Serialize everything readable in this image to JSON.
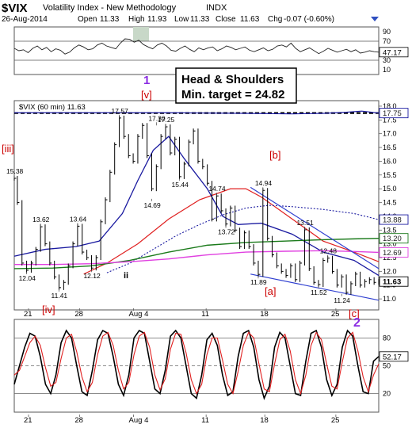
{
  "header": {
    "symbol": "$VIX",
    "name": "Volatility Index - New Methodology",
    "exchange": "INDX",
    "date": "26-Aug-2014",
    "open_label": "Open",
    "open": "11.33",
    "high_label": "High",
    "high": "11.93",
    "low_label": "Low",
    "low": "11.33",
    "close_label": "Close",
    "close": "11.63",
    "chg_label": "Chg",
    "chg": "-0.07 (-0.60%)"
  },
  "colors": {
    "price": "#000000",
    "red_ma": "#e02020",
    "blue_ma": "#1a1aa0",
    "dotted_ma": "#1a1aa0",
    "green_ma": "#1a7a1a",
    "magenta_ma": "#e040e0",
    "channel": "#2f3fd0",
    "wave_red": "#cc0000",
    "wave_purple": "#8a2be2"
  },
  "chart_data": [
    {
      "type": "line",
      "title": "RSI",
      "ylim": [
        0,
        100
      ],
      "yticks": [
        "90",
        "70",
        "50",
        "30",
        "10"
      ],
      "last_value_label": "47.17",
      "values": [
        55,
        50,
        52,
        46,
        55,
        60,
        52,
        57,
        48,
        54,
        51,
        43,
        47,
        56,
        62,
        58,
        52,
        54,
        62,
        66,
        60,
        57,
        54,
        66,
        75,
        74,
        68,
        72,
        63,
        58,
        54,
        62,
        66,
        60,
        51,
        49,
        55,
        60,
        53,
        48,
        56,
        52,
        56,
        58,
        50,
        54,
        60,
        57,
        52,
        55,
        58,
        51,
        48,
        52,
        56,
        50,
        53,
        60,
        62,
        58,
        66,
        55,
        48,
        52,
        56,
        50,
        44,
        49,
        55,
        51,
        47,
        50,
        53,
        48,
        52,
        45,
        47,
        50,
        48,
        47
      ]
    },
    {
      "type": "line",
      "title": "$VIX (60 min) 11.63",
      "ylim": [
        10.6,
        18.2
      ],
      "yticks": [
        "18.0",
        "17.5",
        "17.0",
        "16.5",
        "16.0",
        "15.5",
        "15.0",
        "14.5",
        "14.0",
        "13.5",
        "13.0",
        "12.5",
        "12.0",
        "11.5",
        "11.0"
      ],
      "x_tick_labels": [
        "21",
        "28",
        "Aug 4",
        "11",
        "18",
        "25"
      ],
      "series": [
        {
          "name": "price",
          "x": [
            0,
            2,
            5,
            8,
            11,
            14,
            17,
            20,
            23,
            26,
            29,
            32,
            35,
            38,
            41,
            44,
            47,
            50,
            53,
            56,
            59,
            62,
            65,
            68,
            71,
            74,
            77,
            80,
            83,
            86,
            89,
            92,
            95,
            98,
            101,
            104,
            107,
            110,
            113,
            116,
            119,
            122,
            125,
            128,
            131,
            134,
            137,
            140,
            143,
            146,
            149,
            152,
            155,
            158,
            161,
            164,
            167,
            170,
            173,
            176,
            179,
            182,
            185,
            188,
            191,
            194,
            197,
            200,
            203,
            206,
            209,
            212,
            215,
            218,
            221,
            224,
            227,
            230,
            233,
            236
          ],
          "y": [
            15.38,
            14.5,
            12.3,
            12.04,
            12.3,
            12.8,
            13.62,
            13.0,
            12.3,
            11.8,
            11.41,
            11.6,
            12.2,
            13.0,
            13.64,
            12.7,
            12.5,
            12.12,
            12.5,
            13.8,
            14.6,
            15.6,
            16.6,
            17.57,
            16.9,
            16.2,
            16.0,
            16.9,
            17.3,
            16.2,
            15.0,
            15.8,
            16.9,
            17.25,
            16.3,
            16.8,
            15.44,
            15.9,
            16.7,
            17.1,
            16.0,
            15.8,
            15.2,
            13.9,
            14.74,
            14.2,
            13.72,
            14.3,
            13.5,
            12.9,
            13.4,
            12.9,
            12.3,
            11.89,
            14.94,
            13.2,
            12.6,
            12.2,
            12.0,
            11.85,
            12.2,
            11.7,
            12.3,
            13.51,
            12.1,
            11.6,
            11.52,
            12.4,
            12.48,
            12.0,
            11.5,
            11.8,
            11.24,
            11.55,
            11.9,
            11.5,
            11.63,
            11.7,
            11.6,
            11.63
          ]
        },
        {
          "name": "red_ma",
          "x": [
            45,
            60,
            80,
            100,
            120,
            140,
            150,
            160,
            180,
            200,
            220,
            236
          ],
          "y": [
            11.9,
            12.3,
            13.0,
            13.9,
            14.6,
            15.0,
            15.0,
            14.7,
            13.9,
            13.1,
            12.7,
            12.35
          ]
        },
        {
          "name": "blue_ma",
          "x": [
            0,
            20,
            40,
            55,
            70,
            80,
            90,
            100,
            110,
            125,
            135,
            145,
            160,
            180,
            200,
            220,
            236
          ],
          "y": [
            12.55,
            12.8,
            12.9,
            13.1,
            14.1,
            15.3,
            16.4,
            16.9,
            16.1,
            15.0,
            14.0,
            13.7,
            13.75,
            13.35,
            12.7,
            12.4,
            11.85
          ]
        },
        {
          "name": "dotted_ma",
          "x": [
            60,
            75,
            90,
            105,
            120,
            135,
            150,
            165,
            180,
            200,
            220,
            236
          ],
          "y": [
            11.95,
            12.3,
            12.8,
            13.3,
            13.7,
            14.05,
            14.3,
            14.4,
            14.35,
            14.25,
            14.1,
            13.88
          ]
        },
        {
          "name": "green_ma",
          "x": [
            0,
            25,
            50,
            75,
            100,
            125,
            150,
            175,
            200,
            220,
            236
          ],
          "y": [
            12.1,
            12.12,
            12.2,
            12.4,
            12.7,
            12.95,
            13.05,
            13.1,
            13.15,
            13.18,
            13.2
          ]
        },
        {
          "name": "magenta_ma",
          "x": [
            0,
            25,
            50,
            75,
            100,
            125,
            150,
            175,
            200,
            220,
            236
          ],
          "y": [
            12.25,
            12.25,
            12.28,
            12.35,
            12.45,
            12.6,
            12.7,
            12.73,
            12.75,
            12.72,
            12.69
          ]
        },
        {
          "name": "long_ma",
          "x": [
            0,
            50,
            100,
            150,
            180,
            200,
            215,
            225,
            236
          ],
          "y": [
            17.76,
            17.76,
            17.76,
            17.74,
            17.72,
            17.74,
            17.78,
            17.82,
            17.75
          ]
        }
      ],
      "price_labels": [
        {
          "text": "15.38",
          "x": 0,
          "y": 15.38,
          "pos": "above"
        },
        {
          "text": "12.04",
          "x": 8,
          "y": 12.04,
          "pos": "below"
        },
        {
          "text": "13.62",
          "x": 17,
          "y": 13.62,
          "pos": "above"
        },
        {
          "text": "11.41",
          "x": 29,
          "y": 11.41,
          "pos": "below"
        },
        {
          "text": "13.64",
          "x": 41,
          "y": 13.64,
          "pos": "above"
        },
        {
          "text": "12.12",
          "x": 50,
          "y": 12.12,
          "pos": "below"
        },
        {
          "text": "17.57",
          "x": 68,
          "y": 17.57,
          "pos": "above"
        },
        {
          "text": "14.69",
          "x": 89,
          "y": 14.69,
          "pos": "below"
        },
        {
          "text": "17.30",
          "x": 92,
          "y": 17.3,
          "pos": "above"
        },
        {
          "text": "17.25",
          "x": 98,
          "y": 17.25,
          "pos": "above"
        },
        {
          "text": "15.44",
          "x": 107,
          "y": 15.44,
          "pos": "below"
        },
        {
          "text": "14.74",
          "x": 131,
          "y": 14.74,
          "pos": "above"
        },
        {
          "text": "13.72",
          "x": 137,
          "y": 13.72,
          "pos": "below"
        },
        {
          "text": "14.94",
          "x": 161,
          "y": 14.94,
          "pos": "above"
        },
        {
          "text": "11.89",
          "x": 158,
          "y": 11.89,
          "pos": "below"
        },
        {
          "text": "13.51",
          "x": 188,
          "y": 13.51,
          "pos": "above"
        },
        {
          "text": "12.48",
          "x": 203,
          "y": 12.48,
          "pos": "above"
        },
        {
          "text": "11.52",
          "x": 197,
          "y": 11.52,
          "pos": "below"
        },
        {
          "text": "11.24",
          "x": 212,
          "y": 11.24,
          "pos": "below"
        }
      ],
      "axis_value_labels": [
        {
          "text": "17.75",
          "y": 17.75,
          "color": "#1a1aa0"
        },
        {
          "text": "13.88",
          "y": 13.88,
          "color": "#1a1aa0"
        },
        {
          "text": "13.20",
          "y": 13.2,
          "color": "#1a7a1a"
        },
        {
          "text": "12.69",
          "y": 12.69,
          "color": "#e040e0"
        },
        {
          "text": "11.63",
          "y": 11.63,
          "color": "#000000"
        }
      ],
      "channel_upper": {
        "x": [
          153,
          236
        ],
        "y": [
          15.05,
          12.1
        ]
      },
      "channel_lower": {
        "x": [
          153,
          236
        ],
        "y": [
          11.9,
          10.95
        ]
      },
      "neckline": 17.75
    },
    {
      "type": "line",
      "title": "Stochastic",
      "ylim": [
        0,
        100
      ],
      "yticks": [
        "80",
        "50",
        "20"
      ],
      "last_value_label": "52.17",
      "series": [
        {
          "name": "fast",
          "values": [
            30,
            50,
            70,
            85,
            82,
            60,
            30,
            20,
            40,
            75,
            88,
            80,
            50,
            22,
            18,
            45,
            78,
            88,
            85,
            60,
            30,
            18,
            40,
            80,
            88,
            85,
            55,
            25,
            20,
            45,
            82,
            88,
            80,
            50,
            20,
            15,
            40,
            78,
            85,
            72,
            40,
            18,
            22,
            60,
            85,
            88,
            70,
            35,
            15,
            28,
            70,
            86,
            80,
            50,
            20,
            18,
            55,
            85,
            88,
            70,
            35,
            18,
            30,
            70,
            88,
            82,
            50,
            22,
            20,
            55,
            60
          ]
        },
        {
          "name": "slow",
          "values": [
            40,
            45,
            60,
            75,
            82,
            72,
            48,
            28,
            32,
            58,
            80,
            84,
            65,
            38,
            22,
            32,
            62,
            82,
            86,
            72,
            45,
            25,
            32,
            62,
            82,
            86,
            70,
            40,
            24,
            36,
            68,
            85,
            84,
            64,
            35,
            20,
            30,
            62,
            80,
            80,
            56,
            30,
            20,
            44,
            72,
            86,
            80,
            52,
            25,
            22,
            52,
            78,
            84,
            66,
            35,
            20,
            40,
            72,
            86,
            78,
            52,
            28,
            25,
            54,
            80,
            86,
            66,
            38,
            22,
            40,
            52
          ]
        }
      ]
    }
  ],
  "annotations": {
    "head_shoulders_line1": "Head & Shoulders",
    "head_shoulders_line2": "Min. target = 24.82",
    "wave_1": "1",
    "wave_v": "[v]",
    "wave_iii": "[iii]",
    "wave_iv": "[iv]",
    "wave_b": "[b]",
    "wave_a": "[a]",
    "wave_c": "[c]",
    "wave_2": "2",
    "wave_ii": "ii"
  }
}
